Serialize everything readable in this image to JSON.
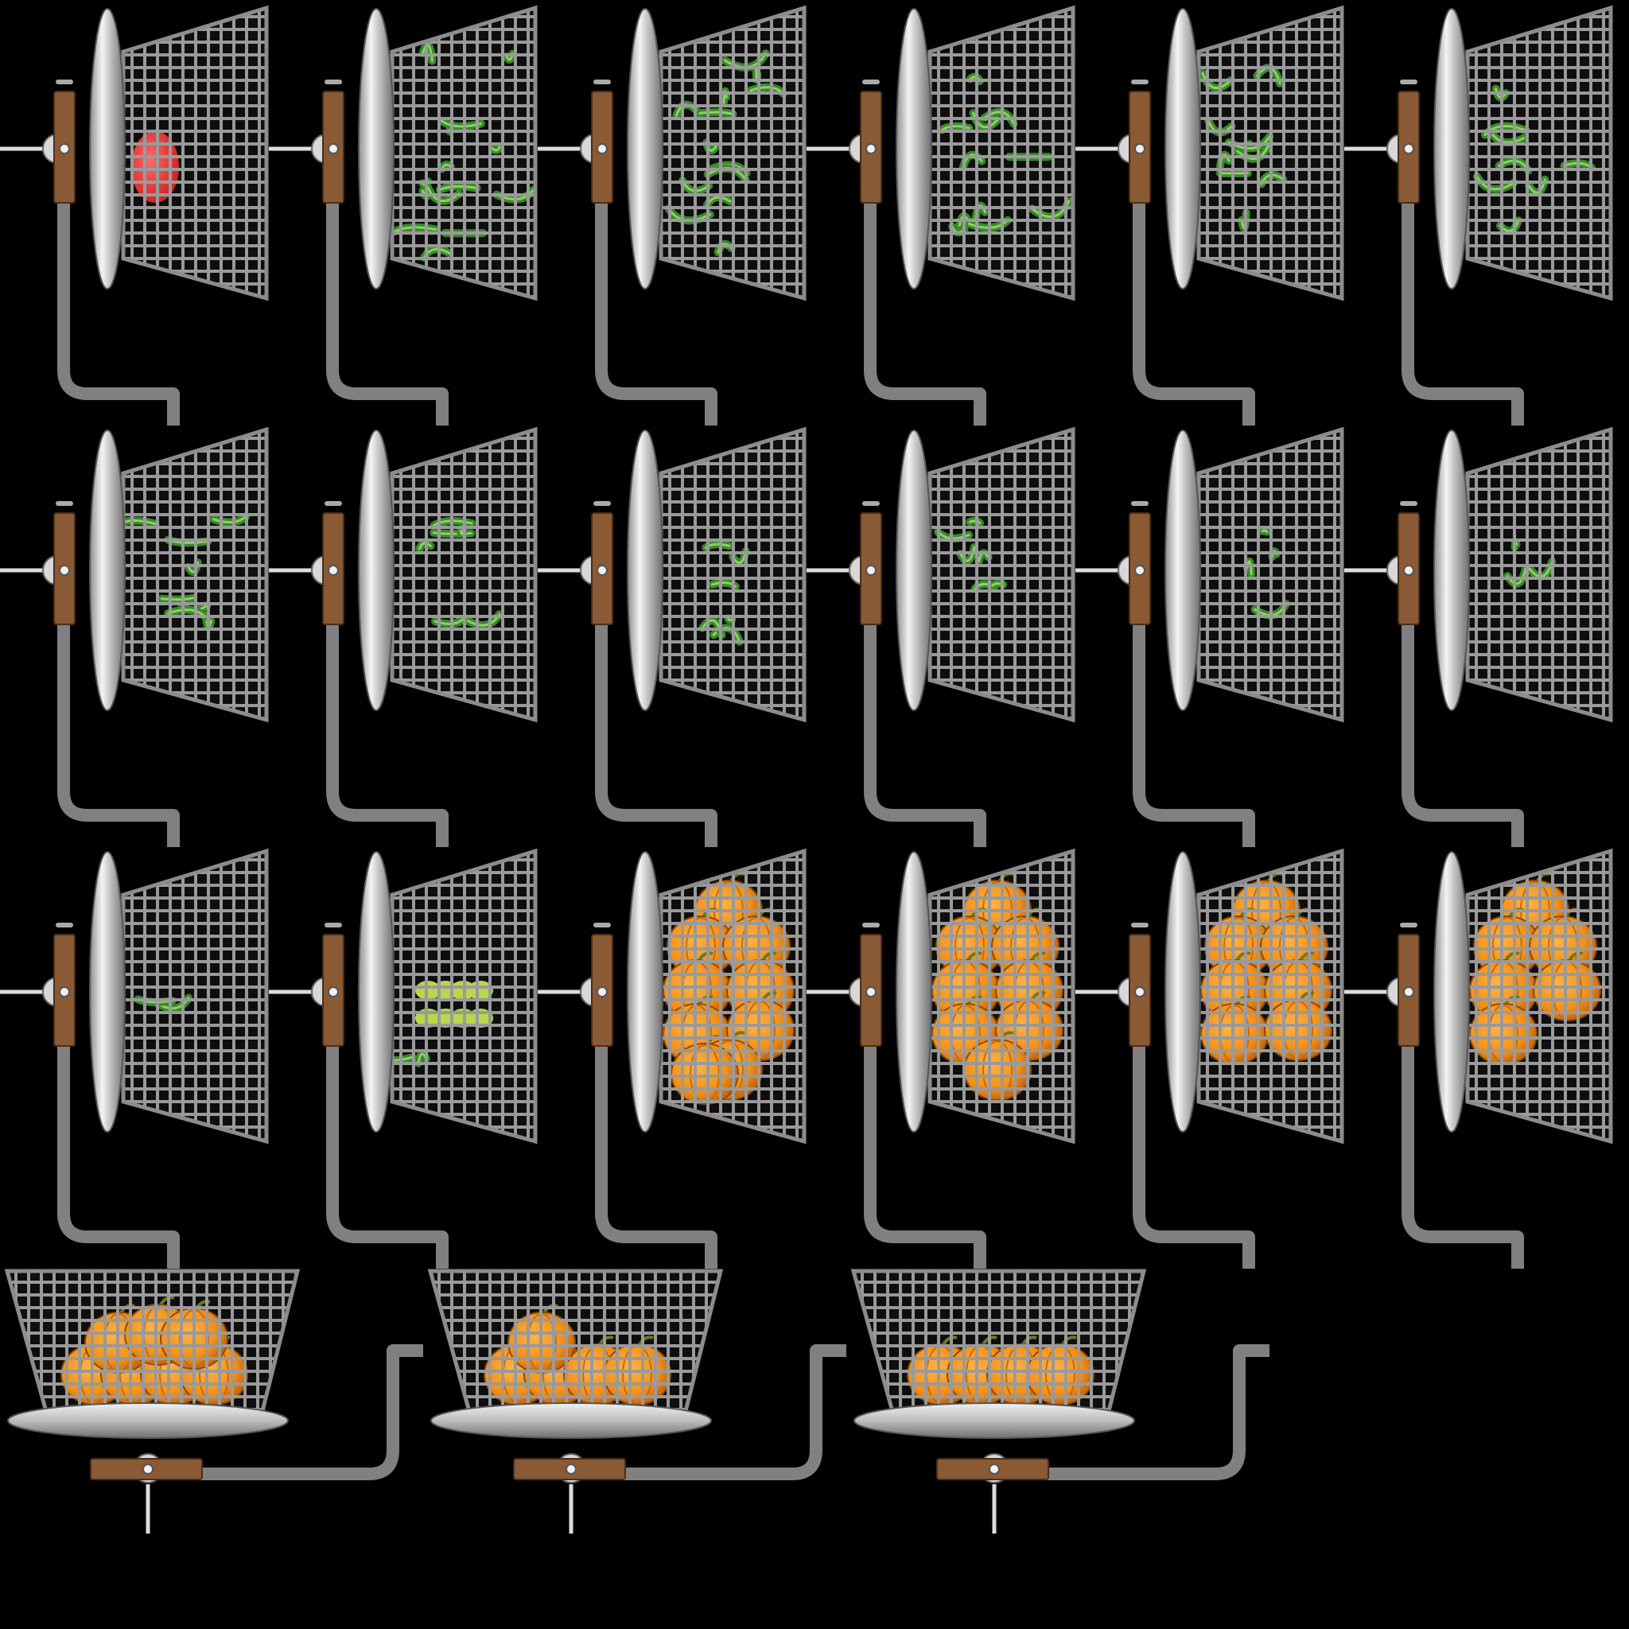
{
  "sprite_sheet": {
    "background": "#000000",
    "colors": {
      "mesh": "#9a9a9a",
      "mesh_frame": "#8c8c8c",
      "arm": "#808080",
      "handle": "#8a5a35",
      "plant": "#3a8a2a",
      "plant_light": "#8ed06a",
      "seed": "#d02525",
      "sprout": "#b8d84a",
      "pumpkin": "#f39018",
      "pumpkin_dark": "#c66a10",
      "stem": "#6a7a2a"
    },
    "frames": [
      {
        "row": 0,
        "content": "seed",
        "amount": 1
      },
      {
        "row": 0,
        "content": "vine",
        "amount": 1.0
      },
      {
        "row": 0,
        "content": "vine",
        "amount": 0.9
      },
      {
        "row": 0,
        "content": "vine",
        "amount": 0.8
      },
      {
        "row": 0,
        "content": "vine",
        "amount": 0.7
      },
      {
        "row": 0,
        "content": "vine",
        "amount": 0.6
      },
      {
        "row": 1,
        "content": "vine",
        "amount": 0.55
      },
      {
        "row": 1,
        "content": "vine",
        "amount": 0.5
      },
      {
        "row": 1,
        "content": "vine",
        "amount": 0.45
      },
      {
        "row": 1,
        "content": "vine",
        "amount": 0.4
      },
      {
        "row": 1,
        "content": "vine",
        "amount": 0.3
      },
      {
        "row": 1,
        "content": "vine",
        "amount": 0.2
      },
      {
        "row": 2,
        "content": "vine",
        "amount": 0.1
      },
      {
        "row": 2,
        "content": "sprout",
        "amount": 1
      },
      {
        "row": 2,
        "content": "pumpkins",
        "amount": 9
      },
      {
        "row": 2,
        "content": "pumpkins",
        "amount": 8
      },
      {
        "row": 2,
        "content": "pumpkins",
        "amount": 7
      },
      {
        "row": 2,
        "content": "pumpkins",
        "amount": 6
      },
      {
        "row": 3,
        "content": "pumpkins",
        "amount": 7,
        "orientation": "upright"
      },
      {
        "row": 3,
        "content": "pumpkins",
        "amount": 5,
        "orientation": "upright"
      },
      {
        "row": 3,
        "content": "pumpkins",
        "amount": 4,
        "orientation": "upright"
      }
    ]
  }
}
